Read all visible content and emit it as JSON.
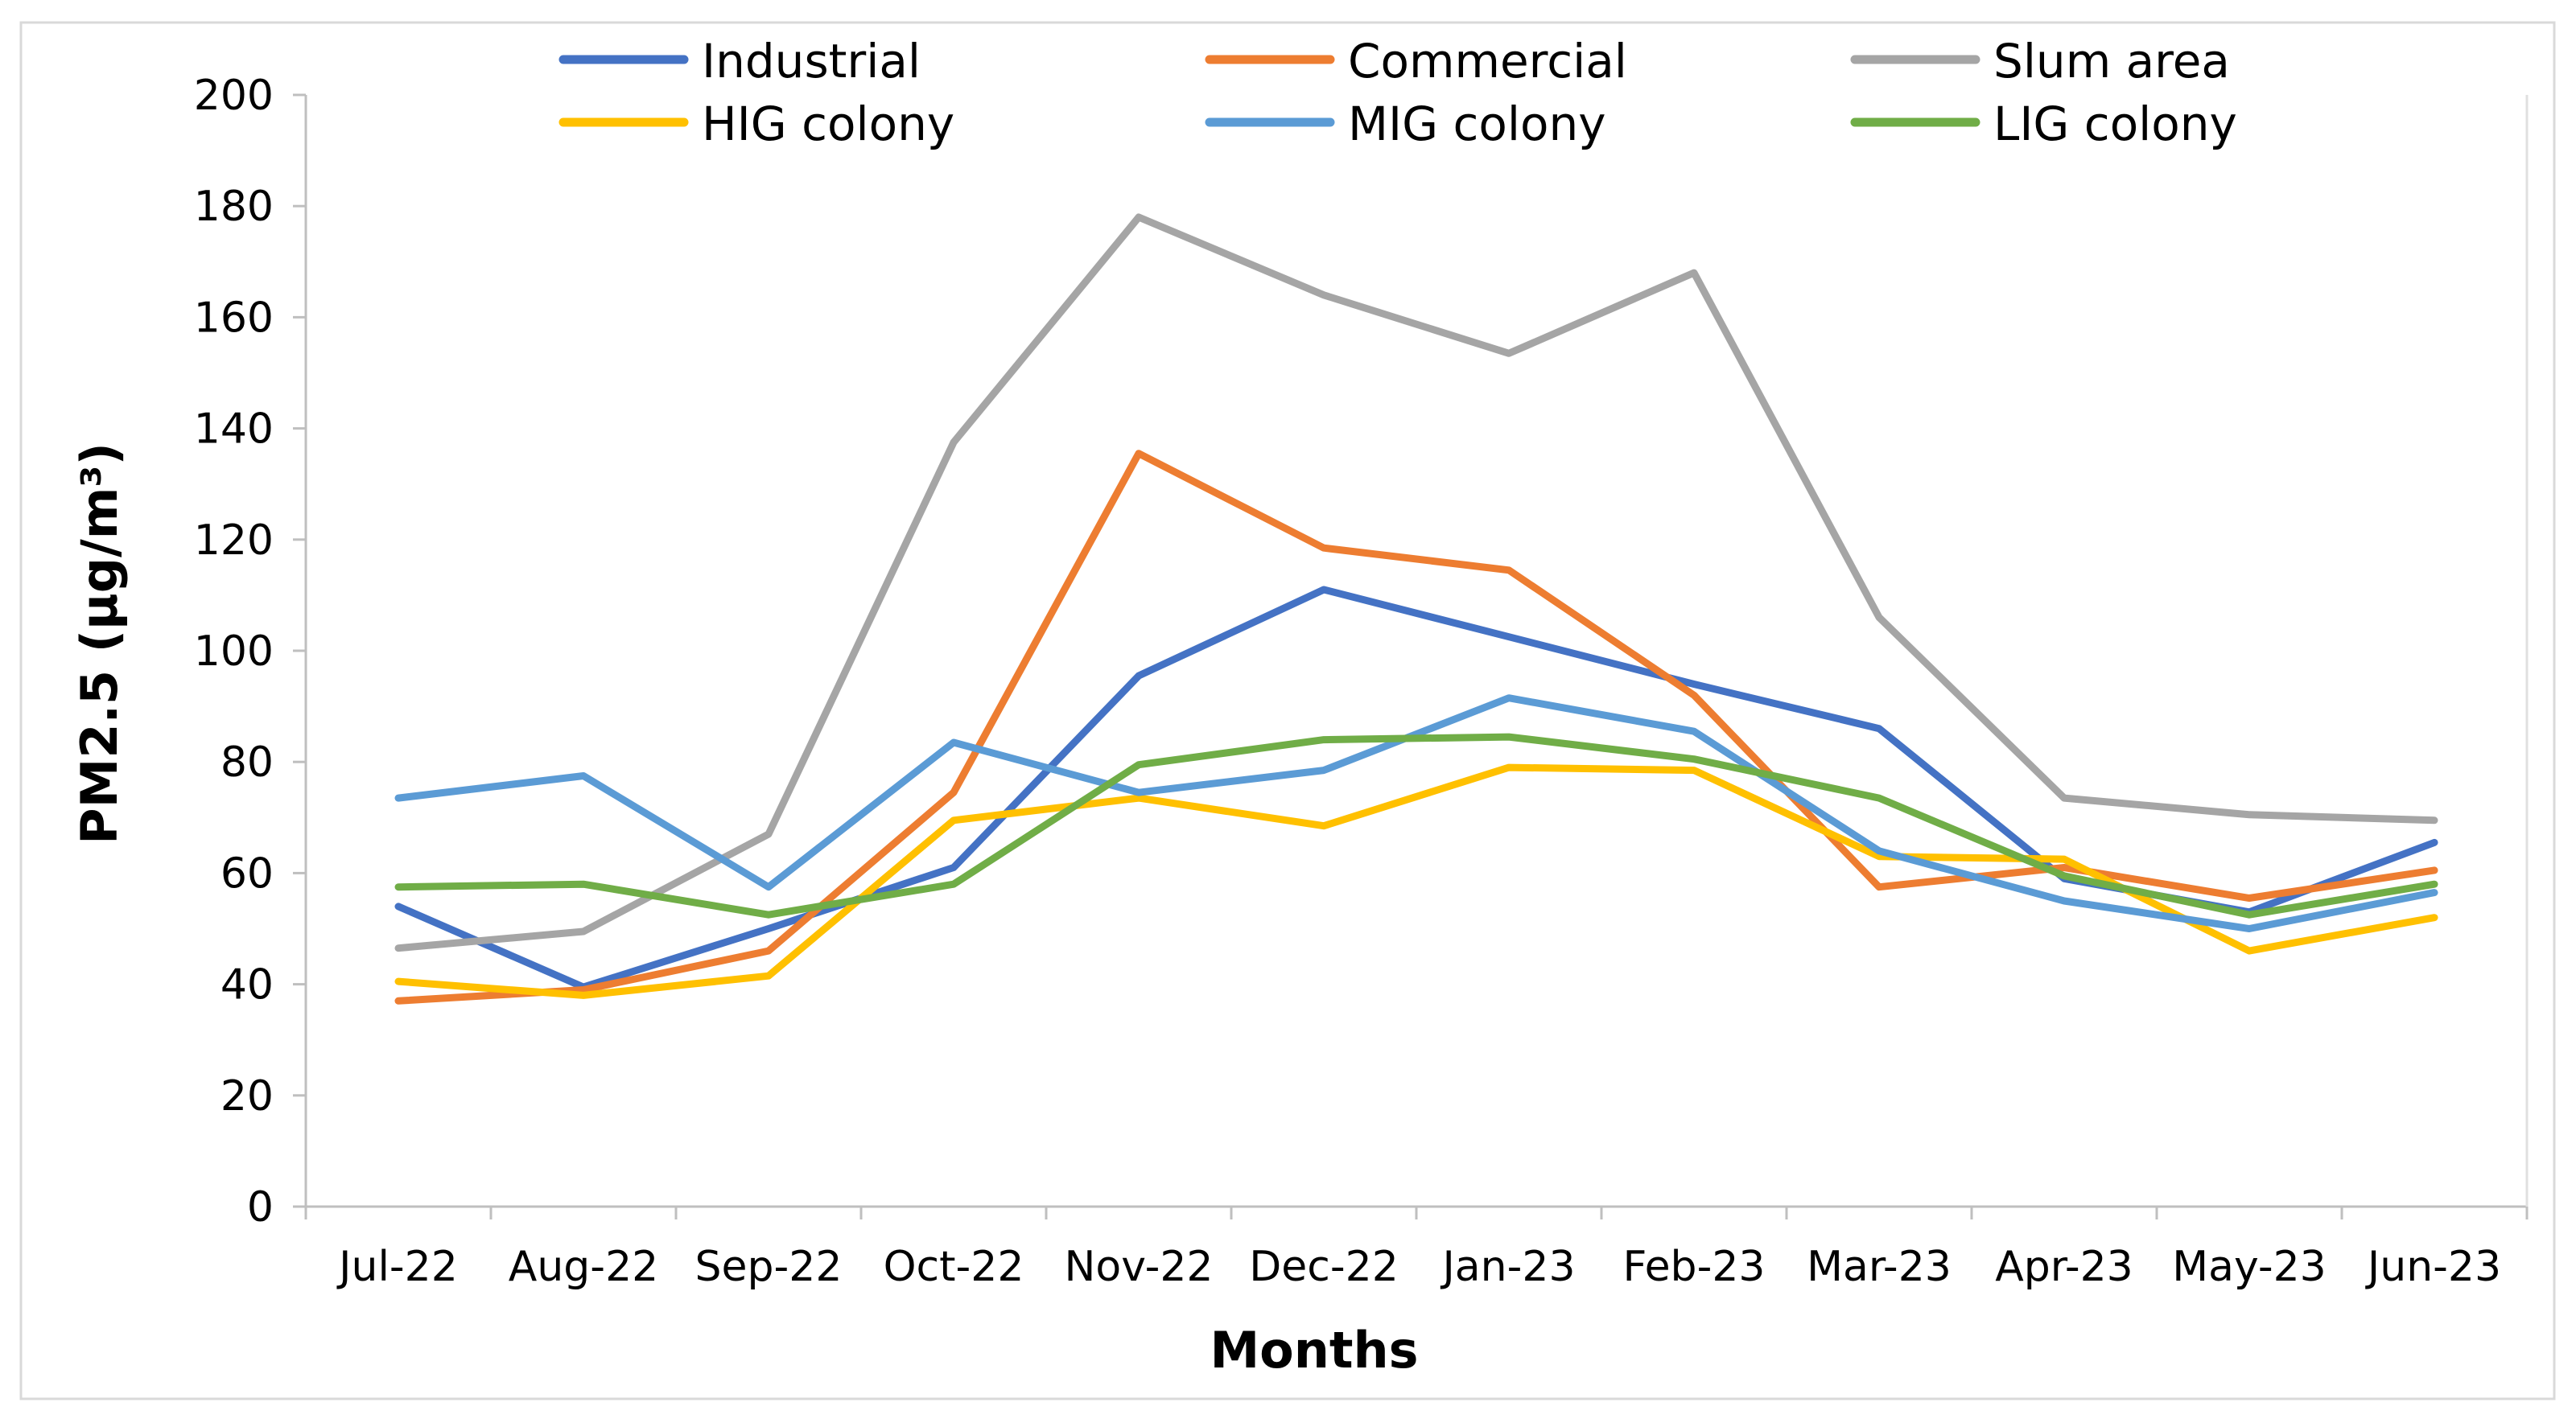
{
  "chart_data": {
    "type": "line",
    "title": "",
    "xlabel": "Months",
    "ylabel": "PM2.5 (µg/m³)",
    "ylim": [
      0,
      200
    ],
    "yticks": [
      "0",
      "20",
      "40",
      "60",
      "80",
      "100",
      "120",
      "140",
      "160",
      "180",
      "200"
    ],
    "grid": false,
    "legend_position": "top",
    "categories": [
      "Jul-22",
      "Aug-22",
      "Sep-22",
      "Oct-22",
      "Nov-22",
      "Dec-22",
      "Jan-23",
      "Feb-23",
      "Mar-23",
      "Apr-23",
      "May-23",
      "Jun-23"
    ],
    "series": [
      {
        "name": "Industrial",
        "color": "#4472c4",
        "values": [
          54,
          39.5,
          50,
          61,
          95.5,
          111,
          102.5,
          94,
          86,
          59,
          53,
          65.5
        ]
      },
      {
        "name": "Commercial",
        "color": "#ed7d31",
        "values": [
          37,
          39,
          46,
          74.5,
          135.5,
          118.5,
          114.5,
          92,
          57.5,
          61,
          55.5,
          60.5
        ]
      },
      {
        "name": "Slum area",
        "color": "#a5a5a5",
        "values": [
          46.5,
          49.5,
          67,
          137.5,
          178,
          164,
          153.5,
          168,
          106,
          73.5,
          70.5,
          69.5
        ]
      },
      {
        "name": "HIG colony",
        "color": "#ffc000",
        "values": [
          40.5,
          38,
          41.5,
          69.5,
          73.5,
          68.5,
          79,
          78.5,
          63,
          62.5,
          46,
          52
        ]
      },
      {
        "name": "MIG colony",
        "color": "#5b9bd5",
        "values": [
          73.5,
          77.5,
          57.5,
          83.5,
          74.5,
          78.5,
          91.5,
          85.5,
          64,
          55,
          50,
          56.5
        ]
      },
      {
        "name": "LIG colony",
        "color": "#70ad47",
        "values": [
          57.5,
          58,
          52.5,
          58,
          79.5,
          84,
          84.5,
          80.5,
          73.5,
          59.5,
          52.5,
          58
        ]
      }
    ]
  },
  "colors": {
    "axis": "#bfbfbf",
    "frame": "#d9d9d9",
    "text": "#000000"
  }
}
